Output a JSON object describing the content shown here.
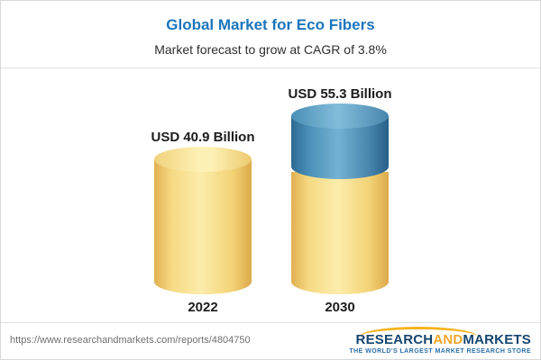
{
  "header": {
    "title": "Global Market for Eco Fibers",
    "subtitle": "Market forecast to grow at CAGR of 3.8%"
  },
  "chart_data": {
    "type": "bar",
    "title": "Global Market for Eco Fibers",
    "subtitle": "Market forecast to grow at CAGR of 3.8%",
    "categories": [
      "2022",
      "2030"
    ],
    "values": [
      40.9,
      55.3
    ],
    "value_labels": [
      "USD 40.9 Billion",
      "USD 55.3 Billion"
    ],
    "unit": "USD Billion",
    "cagr": "3.8%",
    "xlabel": "",
    "ylabel": "",
    "ylim": [
      0,
      60
    ],
    "grid": false,
    "legend": "none",
    "bar_style": "3d-cylinder",
    "colors": {
      "bar_2022": "#f3d377",
      "bar_2030_base": "#f3d377",
      "bar_2030_growth_segment": "#4b8fb8",
      "title": "#1b75bb"
    }
  },
  "footer": {
    "url": "https://www.researchandmarkets.com/reports/4804750",
    "logo": {
      "research": "RESEARCH",
      "and": "AND",
      "markets": "MARKETS",
      "tagline": "THE WORLD'S LARGEST MARKET RESEARCH STORE"
    }
  }
}
